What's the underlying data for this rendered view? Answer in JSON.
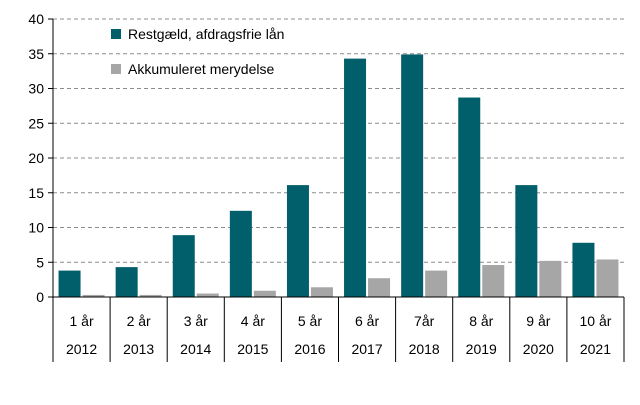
{
  "chart_data": {
    "type": "bar",
    "title": "",
    "xlabel": "",
    "ylabel": "",
    "ylim": [
      0,
      40
    ],
    "yticks": [
      0,
      5,
      10,
      15,
      20,
      25,
      30,
      35,
      40
    ],
    "grid": "horizontal-dashed",
    "legend_position": "top-left",
    "categories": [
      {
        "top": "1 år",
        "bottom": "2012"
      },
      {
        "top": "2 år",
        "bottom": "2013"
      },
      {
        "top": "3 år",
        "bottom": "2014"
      },
      {
        "top": "4 år",
        "bottom": "2015"
      },
      {
        "top": "5 år",
        "bottom": "2016"
      },
      {
        "top": "6 år",
        "bottom": "2017"
      },
      {
        "top": "7år",
        "bottom": "2018"
      },
      {
        "top": "8 år",
        "bottom": "2019"
      },
      {
        "top": "9 år",
        "bottom": "2020"
      },
      {
        "top": "10 år",
        "bottom": "2021"
      }
    ],
    "series": [
      {
        "name": "Restgæld, afdragsfrie lån",
        "color": "#005f6b",
        "values": [
          3.8,
          4.3,
          8.9,
          12.4,
          16.1,
          34.3,
          34.9,
          28.7,
          16.1,
          7.8
        ]
      },
      {
        "name": "Akkumuleret merydelse",
        "color": "#a6a6a6",
        "values": [
          0.3,
          0.3,
          0.5,
          0.9,
          1.4,
          2.7,
          3.8,
          4.6,
          5.2,
          5.4
        ]
      }
    ]
  }
}
